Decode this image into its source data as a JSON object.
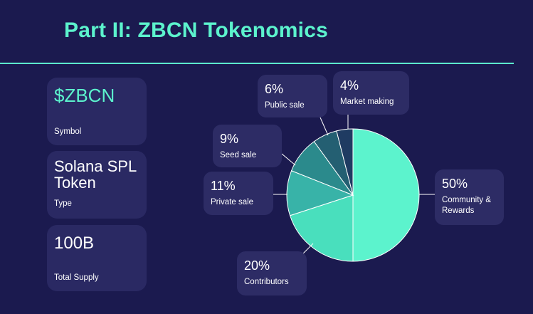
{
  "title": "Part II: ZBCN Tokenomics",
  "cards": {
    "symbol": {
      "value": "$ZBCN",
      "label": "Symbol"
    },
    "type": {
      "value": "Solana SPL Token",
      "label": "Type"
    },
    "supply": {
      "value": "100B",
      "label": "Total Supply"
    }
  },
  "colors": {
    "background": "#1b1a4f",
    "accent": "#5cf3cd",
    "card": "#2a2963"
  },
  "chart_data": {
    "type": "pie",
    "title": "",
    "slices": [
      {
        "label": "Community & Rewards",
        "value": 50,
        "pct": "50%",
        "color": "#5cf3cd"
      },
      {
        "label": "Contributors",
        "value": 20,
        "pct": "20%",
        "color": "#49dfbd"
      },
      {
        "label": "Private sale",
        "value": 11,
        "pct": "11%",
        "color": "#38b3a8"
      },
      {
        "label": "Seed sale",
        "value": 9,
        "pct": "9%",
        "color": "#2b8a8c"
      },
      {
        "label": "Public sale",
        "value": 6,
        "pct": "6%",
        "color": "#245f72"
      },
      {
        "label": "Market making",
        "value": 4,
        "pct": "4%",
        "color": "#1f3b62"
      }
    ]
  }
}
